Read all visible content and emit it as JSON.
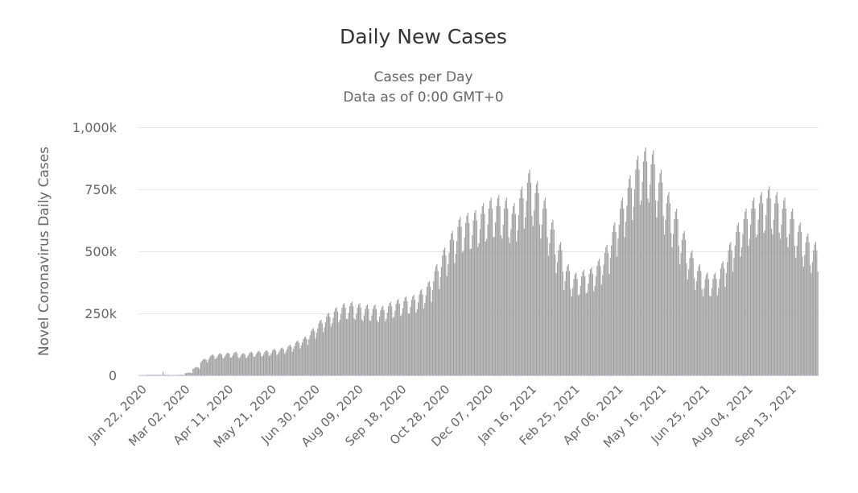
{
  "chart_data": {
    "type": "bar",
    "title": "Daily New Cases",
    "subtitle": [
      "Cases per Day",
      "Data as of 0:00 GMT+0"
    ],
    "ylabel": "Novel Coronavirus Daily Cases",
    "xlabel": "",
    "ylim": [
      0,
      1000000
    ],
    "y_ticks": [
      0,
      250000,
      500000,
      750000,
      1000000
    ],
    "y_tick_labels": [
      "0",
      "250k",
      "500k",
      "750k",
      "1,000k"
    ],
    "x_start": "Jan 22 2020",
    "x_tick_every_days": 50,
    "x_tick_labels": [
      "Jan 22, 2020",
      "Mar 02, 2020",
      "Apr 11, 2020",
      "May 21, 2020",
      "Jun 30, 2020",
      "Aug 09, 2020",
      "Sep 18, 2020",
      "Oct 28, 2020",
      "Dec 07, 2020",
      "Jan 16, 2021",
      "Feb 25, 2021",
      "Apr 06, 2021",
      "May 16, 2021",
      "Jun 25, 2021",
      "Aug 04, 2021",
      "Sep 13, 2021"
    ],
    "grid": true,
    "bar_color": "#9e9e9e",
    "weekly_average_k": [
      1,
      2,
      2,
      2,
      1,
      2,
      10,
      30,
      60,
      75,
      80,
      82,
      85,
      80,
      85,
      88,
      90,
      95,
      100,
      110,
      125,
      140,
      170,
      200,
      225,
      245,
      260,
      265,
      260,
      255,
      255,
      250,
      265,
      275,
      285,
      290,
      310,
      340,
      400,
      460,
      520,
      570,
      585,
      595,
      620,
      640,
      650,
      640,
      620,
      680,
      740,
      700,
      640,
      560,
      480,
      400,
      370,
      380,
      390,
      420,
      470,
      550,
      640,
      720,
      790,
      820,
      810,
      740,
      660,
      600,
      520,
      450,
      400,
      370,
      370,
      410,
      480,
      550,
      600,
      640,
      660,
      680,
      660,
      640,
      600,
      550,
      510,
      480
    ],
    "weekday_factor": [
      0.86,
      0.95,
      1.05,
      1.1,
      1.12,
      1.05,
      0.87
    ],
    "notable_spikes": [
      {
        "day": 22,
        "value_k": 15
      }
    ]
  }
}
